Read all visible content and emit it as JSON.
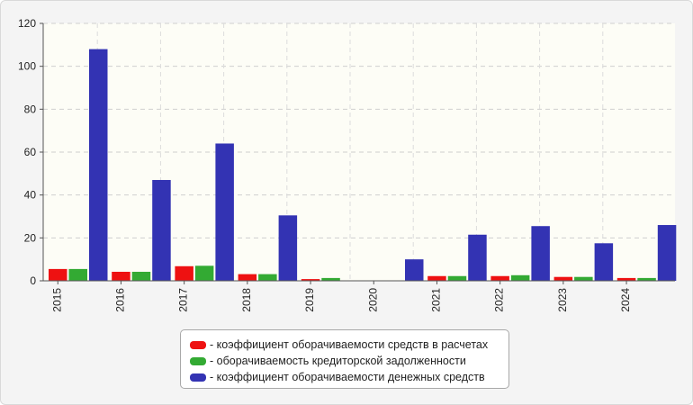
{
  "chart_data": {
    "type": "bar",
    "categories": [
      "2015",
      "2016",
      "2017",
      "2018",
      "2019",
      "2020",
      "2021",
      "2022",
      "2023",
      "2024"
    ],
    "series": [
      {
        "name": "- коэффициент оборачиваемости средств в расчетах",
        "color": "#ee1111",
        "values": [
          5.5,
          4.2,
          6.8,
          3.1,
          0.8,
          0,
          2.2,
          2.2,
          1.8,
          1.3
        ]
      },
      {
        "name": "- оборачиваемость кредиторской задолженности",
        "color": "#33aa33",
        "values": [
          5.5,
          4.2,
          7.0,
          3.1,
          1.3,
          0,
          2.2,
          2.6,
          1.8,
          1.3
        ]
      },
      {
        "name": "- коэффициент оборачиваемости денежных средств",
        "color": "#3333b3",
        "values": [
          108,
          47,
          64,
          30.5,
          0,
          10,
          21.5,
          25.5,
          17.5,
          26
        ]
      }
    ],
    "ylim": [
      0,
      120
    ],
    "yticks": [
      "0",
      "20",
      "40",
      "60",
      "80",
      "100",
      "120"
    ],
    "grid": true,
    "legend_position": "bottom-center"
  }
}
